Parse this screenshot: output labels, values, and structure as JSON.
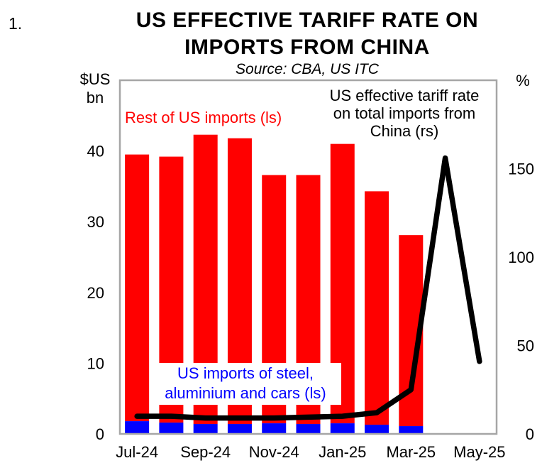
{
  "figure": {
    "number": "1."
  },
  "header": {
    "title_line1": "US EFFECTIVE TARIFF RATE ON",
    "title_line2": "IMPORTS FROM CHINA",
    "subtitle": "Source: CBA, US ITC"
  },
  "axes": {
    "left_unit": "$US\nbn",
    "right_unit": "%"
  },
  "annotations": {
    "rest_imports": "Rest of US imports (ls)",
    "tariff_rate": "US effective tariff rate\non total imports from\nChina (rs)",
    "steel_imports": "US imports of steel,\naluminium and cars (ls)"
  },
  "colors": {
    "red_bar": "#FF0000",
    "blue_bar": "#0000FF",
    "line": "#000000",
    "plot_border": "#A6A6A6"
  },
  "chart_data": {
    "type": "bar",
    "subtype": "stacked-bars-with-line",
    "title": "US EFFECTIVE TARIFF RATE ON IMPORTS FROM CHINA",
    "subtitle": "Source: CBA, US ITC",
    "categories": [
      "Jul-24",
      "Aug-24",
      "Sep-24",
      "Oct-24",
      "Nov-24",
      "Dec-24",
      "Jan-25",
      "Feb-25",
      "Mar-25",
      "Apr-25",
      "May-25"
    ],
    "x_tick_labels": [
      "Jul-24",
      "Sep-24",
      "Nov-24",
      "Jan-25",
      "Mar-25",
      "May-25"
    ],
    "x_tick_month_index": [
      0,
      2,
      4,
      6,
      8,
      10
    ],
    "left_axis": {
      "label": "$US bn",
      "min": 0,
      "max": 50,
      "tick_step": 10,
      "visible_ticks": [
        0,
        10,
        20,
        30,
        40
      ]
    },
    "right_axis": {
      "label": "%",
      "min": 0,
      "max": 200,
      "tick_step": 50,
      "visible_ticks": [
        0,
        50,
        100,
        150
      ]
    },
    "grid": false,
    "legend_position": "in-plot-text-labels",
    "series": [
      {
        "name": "US imports of steel, aluminium and cars (ls)",
        "type": "bar",
        "stack": "imports",
        "axis": "left",
        "color": "#0000FF",
        "values": [
          1.8,
          1.6,
          1.4,
          1.4,
          1.5,
          1.4,
          1.5,
          1.3,
          1.1,
          null,
          null
        ]
      },
      {
        "name": "Rest of US imports (ls)",
        "type": "bar",
        "stack": "imports",
        "axis": "left",
        "color": "#FF0000",
        "values": [
          37.7,
          37.6,
          40.9,
          40.4,
          35.1,
          35.2,
          39.5,
          33.0,
          27.0,
          null,
          null
        ]
      },
      {
        "name": "US effective tariff rate on total imports from China (rs)",
        "type": "line",
        "axis": "right",
        "color": "#000000",
        "values": [
          10,
          10,
          9,
          9,
          9,
          9.5,
          10,
          12,
          25,
          156,
          41
        ]
      }
    ],
    "stacked_totals_left_axis": [
      39.5,
      39.2,
      42.3,
      41.8,
      36.6,
      36.6,
      41.0,
      34.3,
      28.1,
      null,
      null
    ]
  }
}
